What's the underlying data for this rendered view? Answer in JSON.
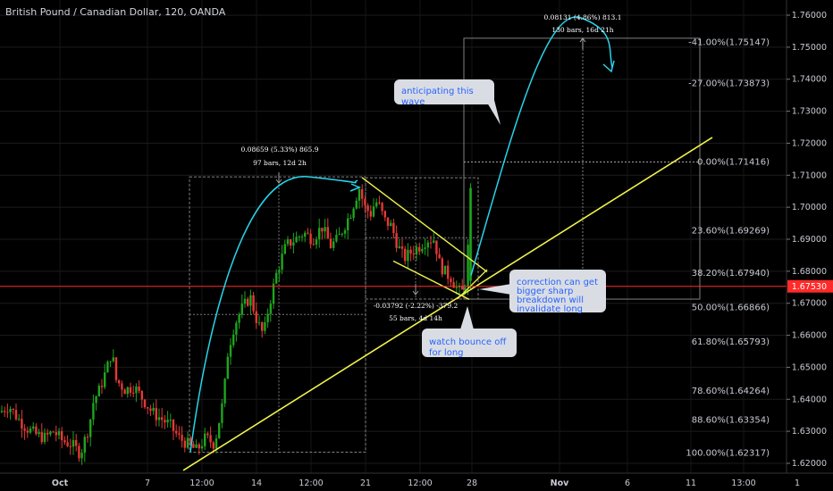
{
  "header": {
    "title": "British Pound / Canadian Dollar, 120, OANDA"
  },
  "colors": {
    "background": "#000000",
    "up_candle": "#26a69a",
    "down_candle": "#ef5350",
    "bull_candle": "#1ea51e",
    "bear_candle": "#e53935",
    "wave_arrow": "#29d4ea",
    "trendline": "#f2f24a",
    "price_line": "#ff2a2a",
    "callout_bg": "#d9dde3",
    "callout_text": "#2962ff",
    "axis_text": "#c8cbd3",
    "measure_box": "#808080"
  },
  "callouts": {
    "wave": "anticipating this wave",
    "correction": "correction can get bigger sharp breakdown will invalidate long",
    "bounce": "watch bounce off for long"
  },
  "measurements": [
    {
      "line1": "0.08659 (5.33%) 865.9",
      "line2": "97 bars, 12d 2h"
    },
    {
      "line1": "-0.03792 (-2.22%) -379.2",
      "line2": "55 bars, 4d 14h"
    },
    {
      "line1": "0.08131 (4.86%) 813.1",
      "line2": "130 bars, 16d 21h"
    }
  ],
  "chart_data": {
    "type": "candlestick",
    "title": "British Pound / Canadian Dollar, 120, OANDA",
    "x_axis": {
      "tick_labels": [
        "Oct",
        "7",
        "12:00",
        "14",
        "12:00",
        "21",
        "12:00",
        "28",
        "Nov",
        "6",
        "11",
        "13:00",
        "1"
      ]
    },
    "y_axis": {
      "range": [
        1.618,
        1.766
      ],
      "tick_labels": [
        "1.76000",
        "1.75000",
        "1.74000",
        "1.73000",
        "1.72000",
        "1.71000",
        "1.70000",
        "1.69000",
        "1.68000",
        "1.67000",
        "1.66000",
        "1.65000",
        "1.64000",
        "1.63000",
        "1.62000"
      ],
      "tick_values": [
        1.76,
        1.75,
        1.74,
        1.73,
        1.72,
        1.71,
        1.7,
        1.69,
        1.68,
        1.67,
        1.66,
        1.65,
        1.64,
        1.63,
        1.62
      ]
    },
    "current_price": {
      "label": "1.67530",
      "value": 1.6753
    },
    "fib_levels": [
      {
        "label": "-41.00%(1.75147)",
        "value": 1.75147
      },
      {
        "label": "-27.00%(1.73873)",
        "value": 1.73873
      },
      {
        "label": "0.00%(1.71416)",
        "value": 1.71416
      },
      {
        "label": "23.60%(1.69269)",
        "value": 1.69269
      },
      {
        "label": "38.20%(1.67940)",
        "value": 1.6794
      },
      {
        "label": "50.00%(1.66866)",
        "value": 1.66866
      },
      {
        "label": "61.80%(1.65793)",
        "value": 1.65793
      },
      {
        "label": "78.60%(1.64264)",
        "value": 1.64264
      },
      {
        "label": "88.60%(1.63354)",
        "value": 1.63354
      },
      {
        "label": "100.00%(1.62317)",
        "value": 1.62317
      }
    ],
    "price_path": [
      [
        0,
        1.636
      ],
      [
        10,
        1.638
      ],
      [
        20,
        1.634
      ],
      [
        30,
        1.631
      ],
      [
        40,
        1.629
      ],
      [
        50,
        1.628
      ],
      [
        60,
        1.63
      ],
      [
        70,
        1.627
      ],
      [
        80,
        1.626
      ],
      [
        90,
        1.623
      ],
      [
        100,
        1.632
      ],
      [
        105,
        1.64
      ],
      [
        110,
        1.642
      ],
      [
        120,
        1.65
      ],
      [
        125,
        1.655
      ],
      [
        130,
        1.646
      ],
      [
        140,
        1.643
      ],
      [
        150,
        1.644
      ],
      [
        160,
        1.64
      ],
      [
        170,
        1.636
      ],
      [
        180,
        1.634
      ],
      [
        190,
        1.632
      ],
      [
        200,
        1.628
      ],
      [
        210,
        1.626
      ],
      [
        220,
        1.624
      ],
      [
        230,
        1.628
      ],
      [
        240,
        1.626
      ],
      [
        250,
        1.64
      ],
      [
        255,
        1.655
      ],
      [
        262,
        1.663
      ],
      [
        270,
        1.668
      ],
      [
        280,
        1.672
      ],
      [
        288,
        1.664
      ],
      [
        295,
        1.66
      ],
      [
        300,
        1.668
      ],
      [
        310,
        1.68
      ],
      [
        320,
        1.688
      ],
      [
        330,
        1.69
      ],
      [
        340,
        1.692
      ],
      [
        350,
        1.69
      ],
      [
        360,
        1.694
      ],
      [
        370,
        1.688
      ],
      [
        378,
        1.69
      ],
      [
        385,
        1.694
      ],
      [
        392,
        1.698
      ],
      [
        398,
        1.703
      ],
      [
        402,
        1.706
      ],
      [
        408,
        1.7
      ],
      [
        415,
        1.698
      ],
      [
        420,
        1.702
      ],
      [
        425,
        1.7
      ],
      [
        430,
        1.696
      ],
      [
        438,
        1.694
      ],
      [
        445,
        1.688
      ],
      [
        452,
        1.684
      ],
      [
        460,
        1.686
      ],
      [
        470,
        1.688
      ],
      [
        478,
        1.69
      ],
      [
        486,
        1.69
      ],
      [
        492,
        1.682
      ],
      [
        500,
        1.679
      ],
      [
        505,
        1.678
      ],
      [
        510,
        1.675
      ],
      [
        516,
        1.673
      ],
      [
        520,
        1.675
      ],
      [
        525,
        1.692
      ],
      [
        527,
        1.706
      ]
    ],
    "drawings": {
      "trendline": {
        "from": [
          "x=205",
          1.6178
        ],
        "to": [
          "x=797",
          1.7218
        ]
      },
      "wedge_upper": {
        "from": [
          "x=405",
          1.7093
        ],
        "to": [
          "x=527",
          1.6865
        ]
      },
      "wedge_lower": {
        "from": [
          "x=440",
          1.6832
        ],
        "to": [
          "x=545",
          1.6822
        ]
      },
      "wave_1": {
        "from": [
          "x=213",
          1.6235
        ],
        "peak": [
          "x=400",
          1.7084
        ]
      },
      "wave_2": {
        "from": [
          "x=527",
          1.6787
        ],
        "peak": [
          "x=650",
          1.7519
        ],
        "end": [
          "x=685",
          1.7436
        ]
      }
    }
  }
}
